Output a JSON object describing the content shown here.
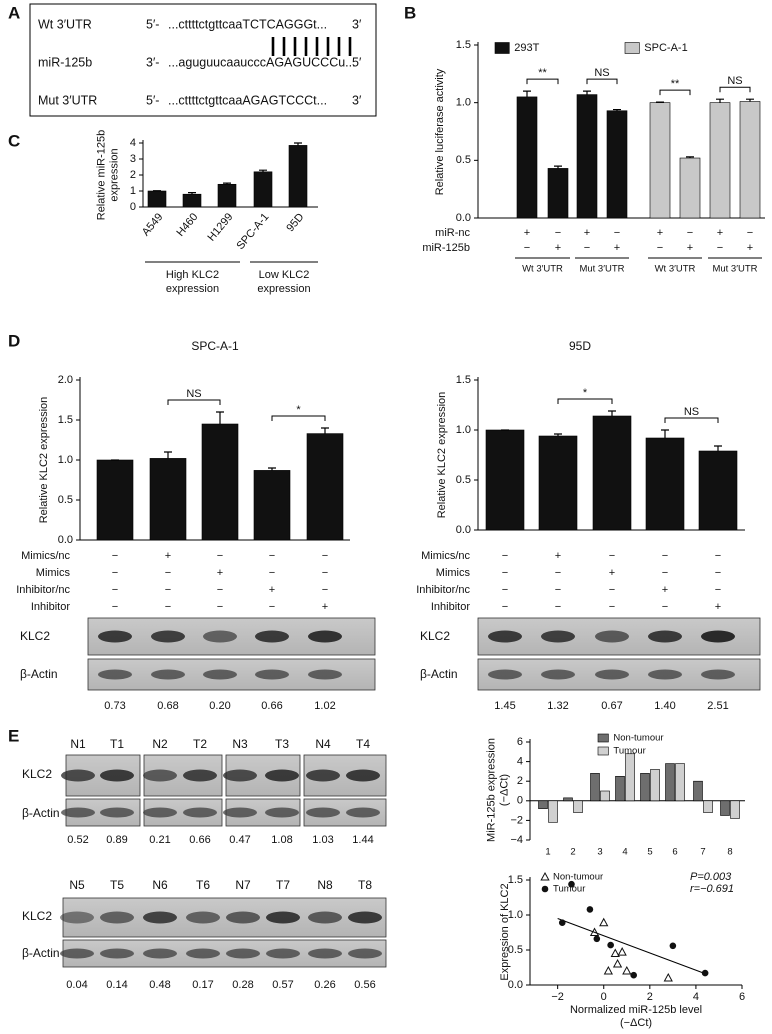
{
  "panel_labels": [
    "A",
    "B",
    "C",
    "D",
    "E"
  ],
  "sequence": {
    "rows": [
      {
        "label": "Wt 3′UTR",
        "prefix": "5′-",
        "seq": "...cttttctgttcaaTCTCAGGGt...",
        "suffix": "3′"
      },
      {
        "label": "miR-125b",
        "prefix": "3′-",
        "seq": "...aguguucaaucccAGAGUCCCu...",
        "suffix": "5′"
      },
      {
        "label": "Mut 3′UTR",
        "prefix": "5′-",
        "seq": "...cttttctgttcaaAGAGTCCCt...",
        "suffix": "3′"
      }
    ]
  },
  "chart_data": [
    {
      "type": "bar",
      "ylabel": "Relative luciferase activity",
      "ylim": [
        0,
        1.5
      ],
      "yticks": [
        {
          "value": 0,
          "label": "0.0"
        },
        0.5,
        {
          "value": 1,
          "label": "1.0"
        },
        1.5
      ],
      "series": [
        {
          "name": "293T",
          "color": "#111111",
          "values": [
            1.05,
            0.43,
            1.07,
            0.93
          ],
          "errors": [
            0.05,
            0.02,
            0.03,
            0.01
          ]
        },
        {
          "name": "SPC-A-1",
          "color": "#c8c8c8",
          "values": [
            1.0,
            0.52,
            1.0,
            1.01
          ],
          "errors": [
            0.005,
            0.01,
            0.03,
            0.02
          ]
        }
      ],
      "conditions": [
        {
          "name": "miR-nc",
          "marks": [
            "+",
            "−",
            "+",
            "−",
            "+",
            "−",
            "+",
            "−"
          ]
        },
        {
          "name": "miR-125b",
          "marks": [
            "−",
            "+",
            "−",
            "+",
            "−",
            "+",
            "−",
            "+"
          ]
        }
      ],
      "groups": [
        "Wt 3′UTR",
        "Mut 3′UTR",
        "Wt 3′UTR",
        "Mut 3′UTR"
      ],
      "significance": [
        "**",
        "NS",
        "**",
        "NS"
      ]
    },
    {
      "type": "bar",
      "ylabel": [
        "Relative miR-125b",
        "expression"
      ],
      "ylim": [
        0,
        4
      ],
      "yticks": [
        0,
        1,
        2,
        3,
        4
      ],
      "categories": [
        "A549",
        "H460",
        "H1299",
        "SPC-A-1",
        "95D"
      ],
      "color": "#111111",
      "values": [
        1.0,
        0.8,
        1.42,
        2.2,
        3.85
      ],
      "errors": [
        0.02,
        0.1,
        0.07,
        0.1,
        0.15
      ],
      "groups": [
        {
          "lines": [
            "High KLC2",
            "expression"
          ]
        },
        {
          "lines": [
            "Low KLC2",
            "expression"
          ]
        }
      ]
    },
    {
      "type": "bar",
      "title": "SPC-A-1",
      "ylabel": "Relative KLC2 expression",
      "ylim": [
        0,
        2
      ],
      "yticks": [
        {
          "value": 0,
          "label": "0.0"
        },
        0.5,
        {
          "value": 1,
          "label": "1.0"
        },
        1.5,
        {
          "value": 2,
          "label": "2.0"
        }
      ],
      "color": "#111111",
      "values": [
        1.0,
        1.02,
        1.45,
        0.87,
        1.33
      ],
      "errors": [
        0,
        0.08,
        0.15,
        0.03,
        0.07
      ],
      "conditions": [
        {
          "name": "Mimics/nc",
          "marks": [
            "−",
            "+",
            "−",
            "−",
            "−"
          ]
        },
        {
          "name": "Mimics",
          "marks": [
            "−",
            "−",
            "+",
            "−",
            "−"
          ]
        },
        {
          "name": "Inhibitor/nc",
          "marks": [
            "−",
            "−",
            "−",
            "+",
            "−"
          ]
        },
        {
          "name": "Inhibitor",
          "marks": [
            "−",
            "−",
            "−",
            "−",
            "+"
          ]
        }
      ],
      "significance": [
        "NS",
        "*"
      ]
    },
    {
      "type": "bar",
      "title": "95D",
      "ylabel": "Relative KLC2 expression",
      "ylim": [
        0,
        1.5
      ],
      "yticks": [
        {
          "value": 0,
          "label": "0.0"
        },
        0.5,
        {
          "value": 1,
          "label": "1.0"
        },
        1.5
      ],
      "color": "#111111",
      "values": [
        1.0,
        0.94,
        1.14,
        0.92,
        0.79
      ],
      "errors": [
        0,
        0.02,
        0.05,
        0.08,
        0.05
      ],
      "conditions": [
        {
          "name": "Mimics/nc",
          "marks": [
            "−",
            "+",
            "−",
            "−",
            "−"
          ]
        },
        {
          "name": "Mimics",
          "marks": [
            "−",
            "−",
            "+",
            "−",
            "−"
          ]
        },
        {
          "name": "Inhibitor/nc",
          "marks": [
            "−",
            "−",
            "−",
            "+",
            "−"
          ]
        },
        {
          "name": "Inhibitor",
          "marks": [
            "−",
            "−",
            "−",
            "−",
            "+"
          ]
        }
      ],
      "significance": [
        "*",
        "NS"
      ]
    },
    {
      "type": "bar",
      "ylabel": [
        "MiR-125b expression",
        "(−ΔCt)"
      ],
      "ylim": [
        -4,
        6
      ],
      "yticks": [
        {
          "value": -4,
          "label": "−4"
        },
        {
          "value": -2,
          "label": "−2"
        },
        0,
        2,
        4,
        6
      ],
      "categories": [
        "1",
        "2",
        "3",
        "4",
        "5",
        "6",
        "7",
        "8"
      ],
      "series": [
        {
          "name": "Non-tumour",
          "color": "#6e6e6e",
          "values": [
            -0.8,
            0.3,
            2.8,
            2.5,
            2.8,
            3.8,
            2.0,
            -1.5
          ]
        },
        {
          "name": "Tumour",
          "color": "#d0d0d0",
          "values": [
            -2.2,
            -1.2,
            1.0,
            4.8,
            3.2,
            3.8,
            -1.2,
            -1.8
          ]
        }
      ]
    },
    {
      "type": "scatter",
      "ylabel": "Expression of KLC2",
      "xlabel": [
        "Normalized miR-125b level",
        "(−ΔCt)"
      ],
      "xlim": [
        -3.2,
        6
      ],
      "xticks": [
        {
          "value": -2,
          "label": "−2"
        },
        0,
        2,
        4,
        6
      ],
      "ylim": [
        0,
        1.5
      ],
      "yticks": [
        {
          "value": 0,
          "label": "0.0"
        },
        0.5,
        {
          "value": 1,
          "label": "1.0"
        },
        1.5
      ],
      "annotations": [
        "P=0.003",
        "r=−0.691"
      ],
      "series": [
        {
          "name": "Non-tumour",
          "color": "#111111",
          "marker": "triangle-open",
          "x": [
            0,
            -0.4,
            0.5,
            0.2,
            0.8,
            1.0,
            0.6,
            2.8
          ],
          "y": [
            0.89,
            0.75,
            0.45,
            0.2,
            0.47,
            0.2,
            0.3,
            0.1
          ]
        },
        {
          "name": "Tumour",
          "color": "#111111",
          "marker": "circle",
          "x": [
            -1.8,
            -1.4,
            -0.6,
            -0.3,
            0.3,
            3.0,
            4.4,
            1.3
          ],
          "y": [
            0.89,
            1.44,
            1.08,
            0.66,
            0.57,
            0.56,
            0.17,
            0.14
          ]
        }
      ],
      "fit": {
        "x": [
          -2,
          4.5
        ],
        "y": [
          0.95,
          0.15
        ]
      }
    }
  ],
  "blots": [
    {
      "bands": [
        "KLC2",
        "β-Actin"
      ],
      "quant": [
        "0.73",
        "0.68",
        "0.20",
        "0.66",
        "1.02"
      ]
    },
    {
      "bands": [
        "KLC2",
        "β-Actin"
      ],
      "quant": [
        "1.45",
        "1.32",
        "0.67",
        "1.40",
        "2.51"
      ]
    },
    {
      "bands": [
        "KLC2",
        "β-Actin"
      ],
      "lanes": [
        "N1",
        "T1",
        "N2",
        "T2",
        "N3",
        "T3",
        "N4",
        "T4"
      ],
      "quant": [
        "0.52",
        "0.89",
        "0.21",
        "0.66",
        "0.47",
        "1.08",
        "1.03",
        "1.44"
      ]
    },
    {
      "bands": [
        "KLC2",
        "β-Actin"
      ],
      "lanes": [
        "N5",
        "T5",
        "N6",
        "T6",
        "N7",
        "T7",
        "N8",
        "T8"
      ],
      "quant": [
        "0.04",
        "0.14",
        "0.48",
        "0.17",
        "0.28",
        "0.57",
        "0.26",
        "0.56"
      ]
    }
  ]
}
